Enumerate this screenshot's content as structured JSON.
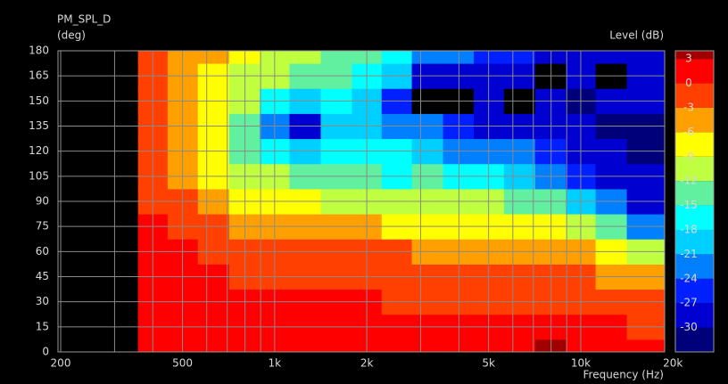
{
  "chart_data": {
    "type": "heatmap",
    "title": "PM_SPL_D",
    "y_label": "(deg)",
    "x_label": "Frequency (Hz)",
    "colorbar_label": "Level (dB)",
    "x_scale": "log",
    "xlim": [
      196,
      18800
    ],
    "ylim": [
      0,
      180
    ],
    "xticks": [
      200,
      500,
      {
        "value": 1000,
        "label": "1k"
      },
      {
        "value": 2000,
        "label": "2k"
      },
      {
        "value": 5000,
        "label": "5k"
      },
      {
        "value": 10000,
        "label": "10k"
      },
      {
        "value": 20000,
        "label": "20k"
      }
    ],
    "xminor": [
      300,
      400,
      600,
      700,
      800,
      900,
      3000,
      4000,
      6000,
      7000,
      8000,
      9000
    ],
    "yticks": [
      0,
      15,
      30,
      45,
      60,
      75,
      90,
      105,
      120,
      135,
      150,
      165,
      180
    ],
    "grid": true,
    "clim": [
      -33,
      4
    ],
    "cticks": [
      3,
      0,
      -3,
      -6,
      -9,
      -12,
      -15,
      -18,
      -21,
      -24,
      -27,
      -30
    ],
    "colors": [
      "#00007a",
      "#0000d0",
      "#0020ff",
      "#0080ff",
      "#00d0ff",
      "#00ffff",
      "#60f0a0",
      "#c0ff40",
      "#ffff00",
      "#ffa000",
      "#ff4000",
      "#ff0000",
      "#a00000"
    ],
    "below_color": "#000000",
    "x": [
      400,
      500,
      630,
      800,
      1000,
      1250,
      1600,
      2000,
      2500,
      3150,
      4000,
      5000,
      6300,
      8000,
      10000,
      12500,
      16000
    ],
    "y": [
      0,
      15,
      30,
      45,
      60,
      75,
      90,
      105,
      120,
      135,
      150,
      165,
      180
    ],
    "z": [
      [
        1,
        1,
        1,
        0.5,
        0.5,
        0.5,
        -1,
        -1,
        -1,
        -1,
        -2,
        -2,
        -2
      ],
      [
        1,
        1,
        1,
        1,
        0.5,
        -1,
        -2,
        -4,
        -4,
        -4,
        -5,
        -5,
        -5
      ],
      [
        1,
        1,
        1,
        0.5,
        -1,
        -2,
        -5,
        -7,
        -8,
        -8,
        -7,
        -7,
        -6
      ],
      [
        1,
        1,
        0.5,
        -1,
        -2,
        -5,
        -8,
        -10,
        -13,
        -13,
        -11,
        -10,
        -9
      ],
      [
        1,
        1,
        0.5,
        -1,
        -2,
        -5,
        -8,
        -12,
        -17,
        -22,
        -16,
        -12,
        -11
      ],
      [
        1,
        1,
        0.5,
        -1,
        -2,
        -5,
        -9,
        -13,
        -19,
        -28,
        -20,
        -14,
        -12
      ],
      [
        1,
        1,
        0.5,
        -1,
        -2,
        -6,
        -10,
        -14,
        -17,
        -20,
        -18,
        -14,
        -13
      ],
      [
        1,
        1,
        0.5,
        -1,
        -2,
        -6,
        -10,
        -15,
        -17,
        -19,
        -21,
        -16,
        -14
      ],
      [
        1,
        1,
        -0.5,
        -1.5,
        -3,
        -7,
        -11,
        -16,
        -18,
        -22,
        -25,
        -19,
        -17
      ],
      [
        1,
        1,
        -0.5,
        -2,
        -4,
        -7,
        -11,
        -15,
        -19,
        -24,
        -34,
        -28,
        -24
      ],
      [
        1,
        1,
        -0.5,
        -2,
        -4,
        -7,
        -11,
        -16,
        -22,
        -27,
        -35,
        -30,
        -22
      ],
      [
        1,
        1,
        -0.5,
        -2,
        -4,
        -8,
        -12,
        -17,
        -22,
        -30,
        -28,
        -30,
        -25
      ],
      [
        2,
        1,
        -1,
        -2,
        -4,
        -8,
        -13,
        -20,
        -24,
        -29,
        -35,
        -30,
        -27
      ],
      [
        3,
        1,
        -1,
        -2,
        -5,
        -9,
        -15,
        -22,
        -27,
        -30,
        -28,
        -35,
        -30
      ],
      [
        1,
        0.5,
        -1,
        -3,
        -6,
        -11,
        -19,
        -25,
        -28,
        -30,
        -32,
        -28,
        -30
      ],
      [
        1,
        0,
        -2,
        -4,
        -8,
        -15,
        -23,
        -28,
        -30,
        -32,
        -30,
        -35,
        -28
      ],
      [
        0.5,
        -1,
        -3,
        -6,
        -12,
        -22,
        -28,
        -30,
        -33,
        -31,
        -30,
        -30,
        -30
      ]
    ]
  }
}
